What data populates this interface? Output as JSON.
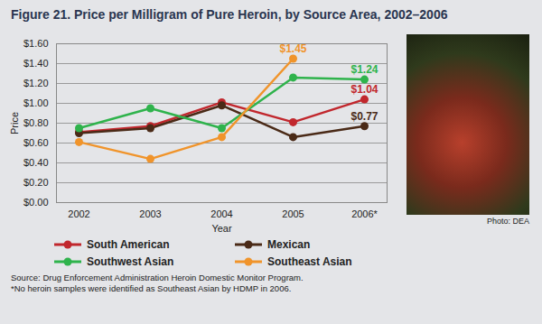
{
  "chart_data": {
    "type": "line",
    "title": "Figure 21. Price per Milligram of Pure Heroin, by Source Area, 2002–2006",
    "x_label": "Year",
    "y_label": "Price",
    "categories": [
      "2002",
      "2003",
      "2004",
      "2005",
      "2006*"
    ],
    "series": [
      {
        "name": "South American",
        "color": "#c1272d",
        "marker": "circle",
        "values": [
          0.71,
          0.77,
          1.01,
          0.81,
          1.04
        ],
        "value_labels": [
          null,
          null,
          null,
          null,
          "$1.04"
        ]
      },
      {
        "name": "Mexican",
        "color": "#4a2a17",
        "marker": "circle",
        "values": [
          0.7,
          0.75,
          0.98,
          0.66,
          0.77
        ],
        "value_labels": [
          null,
          null,
          null,
          null,
          "$0.77"
        ]
      },
      {
        "name": "Southwest Asian",
        "color": "#2fb34c",
        "marker": "circle",
        "values": [
          0.75,
          0.95,
          0.75,
          1.26,
          1.24
        ],
        "value_labels": [
          null,
          null,
          null,
          null,
          "$1.24"
        ]
      },
      {
        "name": "Southeast Asian",
        "color": "#f0942b",
        "marker": "circle",
        "values": [
          0.61,
          0.44,
          0.66,
          1.45,
          null
        ],
        "value_labels": [
          null,
          null,
          null,
          "$1.45",
          null
        ]
      }
    ],
    "ylim": [
      0,
      1.6
    ],
    "yticks": [
      {
        "value": 0,
        "label": "$0.00"
      },
      {
        "value": 0.2,
        "label": "$0.20"
      },
      {
        "value": 0.4,
        "label": "$0.40"
      },
      {
        "value": 0.6,
        "label": "$0.60"
      },
      {
        "value": 0.8,
        "label": "$0.80"
      },
      {
        "value": 1.0,
        "label": "$1.00"
      },
      {
        "value": 1.2,
        "label": "$1.20"
      },
      {
        "value": 1.4,
        "label": "$1.40"
      },
      {
        "value": 1.6,
        "label": "$1.60"
      }
    ],
    "grid": true,
    "legend": "bottom",
    "photo_credit": "Photo: DEA",
    "notes": [
      "Source: Drug Enforcement Administration Heroin Domestic Monitor Program.",
      "*No heroin samples were identified as Southeast Asian by HDMP in 2006."
    ]
  }
}
